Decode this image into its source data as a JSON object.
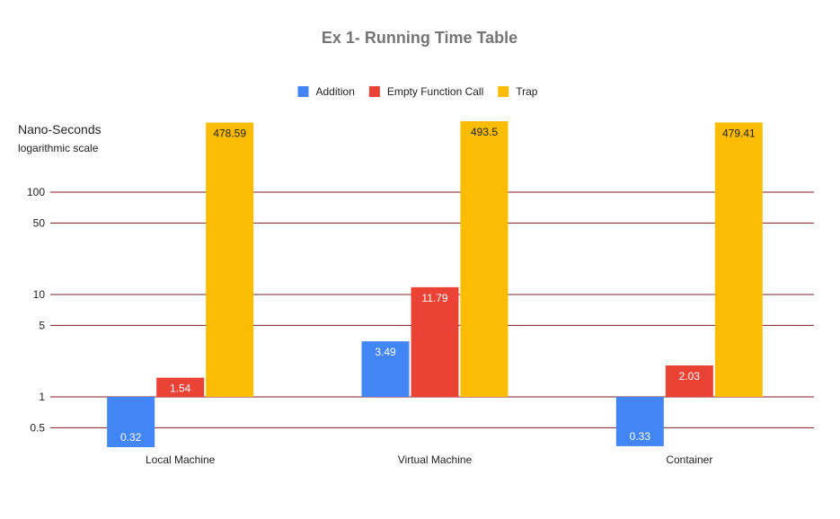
{
  "chart_data": {
    "type": "bar",
    "title": "Ex 1- Running Time Table",
    "ylabel": "Nano-Seconds",
    "ylabel_note": "logarithmic scale",
    "y_scale": "log",
    "ylim": [
      0.4,
      500
    ],
    "y_ticks": [
      {
        "value": 0.5,
        "label": "0.5"
      },
      {
        "value": 1,
        "label": "1"
      },
      {
        "value": 5,
        "label": "5"
      },
      {
        "value": 10,
        "label": "10"
      },
      {
        "value": 50,
        "label": "50"
      },
      {
        "value": 100,
        "label": "100"
      }
    ],
    "grid": true,
    "legend": "top-center",
    "categories": [
      "Local Machine",
      "Virtual Machine",
      "Container"
    ],
    "series": [
      {
        "name": "Addition",
        "color": "#4285f4",
        "values": [
          0.32,
          3.49,
          0.33
        ],
        "labels": [
          "0.32",
          "3.49",
          "0.33"
        ]
      },
      {
        "name": "Empty Function Call",
        "color": "#ea4335",
        "values": [
          1.54,
          11.79,
          2.03
        ],
        "labels": [
          "1.54",
          "11.79",
          "2.03"
        ]
      },
      {
        "name": "Trap",
        "color": "#fbbc04",
        "values": [
          478.59,
          493.5,
          479.41
        ],
        "labels": [
          "478.59",
          "493.5",
          "479.41"
        ]
      }
    ],
    "grid_color": "#7f1d1d"
  }
}
